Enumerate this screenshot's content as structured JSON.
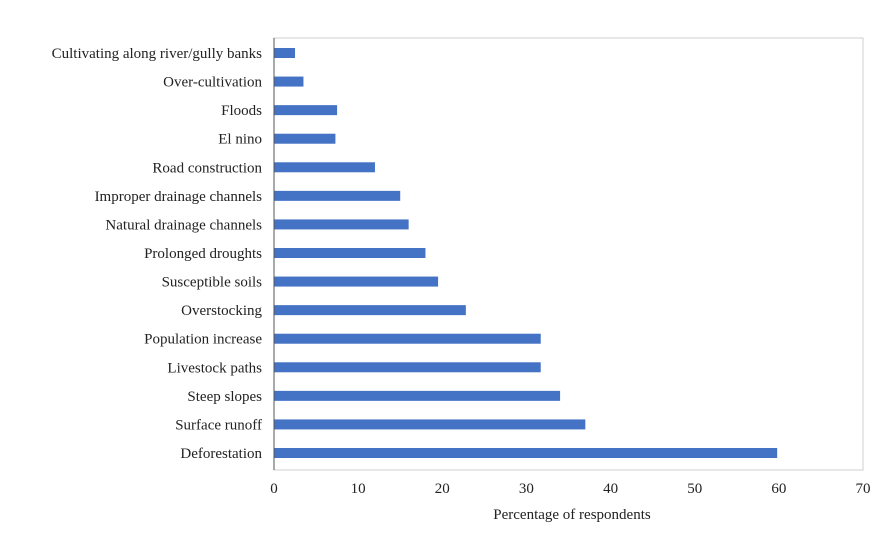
{
  "chart_data": {
    "type": "bar",
    "orientation": "horizontal",
    "title": "",
    "xlabel": "Percentage of respondents",
    "ylabel": "",
    "xlim": [
      0,
      70
    ],
    "xticks": [
      0,
      10,
      20,
      30,
      40,
      50,
      60,
      70
    ],
    "grid": false,
    "legend": "none",
    "bar_color": "#4472C4",
    "categories": [
      "Cultivating along river/gully banks",
      "Over-cultivation",
      "Floods",
      "El nino",
      "Road construction",
      "Improper drainage channels",
      "Natural drainage channels",
      "Prolonged droughts",
      "Susceptible soils",
      "Overstocking",
      "Population increase",
      "Livestock paths",
      "Steep slopes",
      "Surface runoff",
      "Deforestation"
    ],
    "values": [
      2.5,
      3.5,
      7.5,
      7.3,
      12,
      15,
      16,
      18,
      19.5,
      22.8,
      31.7,
      31.7,
      34,
      37,
      59.8
    ]
  }
}
